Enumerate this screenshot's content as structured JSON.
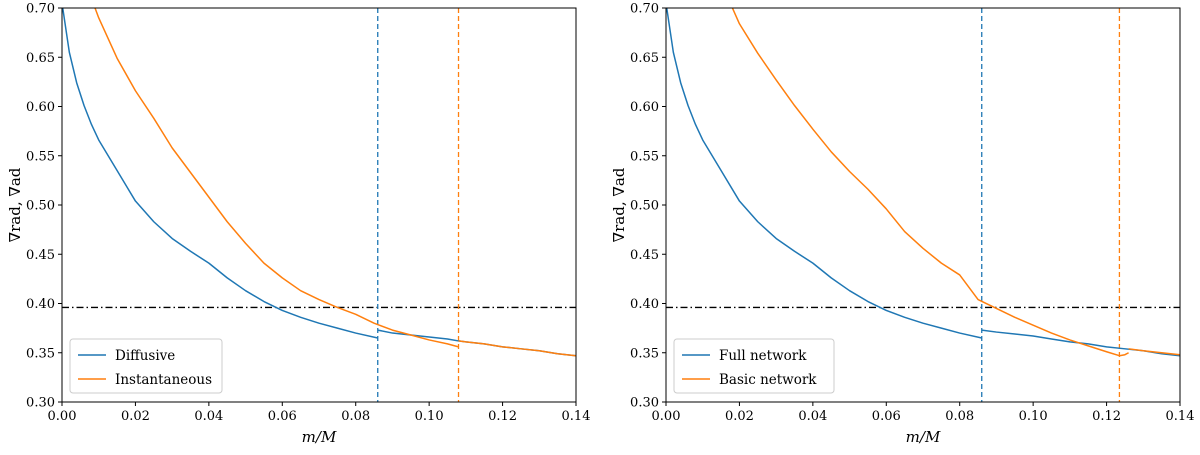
{
  "colors": {
    "blue": "#1f77b4",
    "orange": "#ff7f0e",
    "black": "#000000"
  },
  "chart_data": [
    {
      "type": "line",
      "xlabel": "m/M",
      "ylabel": "∇rad, ∇ad",
      "xlim": [
        0.0,
        0.14
      ],
      "ylim": [
        0.3,
        0.7
      ],
      "xticks": [
        "0.00",
        "0.02",
        "0.04",
        "0.06",
        "0.08",
        "0.10",
        "0.12",
        "0.14"
      ],
      "yticks": [
        "0.30",
        "0.35",
        "0.40",
        "0.45",
        "0.50",
        "0.55",
        "0.60",
        "0.65",
        "0.70"
      ],
      "legend_position": "lower-left",
      "series": [
        {
          "name": "Diffusive",
          "color": "#1f77b4",
          "segments": [
            [
              [
                0.0,
                0.705
              ],
              [
                0.002,
                0.655
              ],
              [
                0.004,
                0.624
              ],
              [
                0.006,
                0.601
              ],
              [
                0.008,
                0.582
              ],
              [
                0.01,
                0.566
              ],
              [
                0.015,
                0.535
              ],
              [
                0.02,
                0.504
              ],
              [
                0.025,
                0.483
              ],
              [
                0.03,
                0.466
              ],
              [
                0.035,
                0.453
              ],
              [
                0.04,
                0.441
              ],
              [
                0.045,
                0.426
              ],
              [
                0.05,
                0.413
              ],
              [
                0.055,
                0.402
              ],
              [
                0.06,
                0.393
              ],
              [
                0.065,
                0.386
              ],
              [
                0.07,
                0.38
              ],
              [
                0.075,
                0.375
              ],
              [
                0.08,
                0.37
              ],
              [
                0.086,
                0.365
              ]
            ],
            [
              [
                0.086,
                0.373
              ],
              [
                0.09,
                0.37
              ],
              [
                0.095,
                0.368
              ],
              [
                0.1,
                0.366
              ],
              [
                0.105,
                0.364
              ],
              [
                0.108,
                0.362
              ],
              [
                0.11,
                0.361
              ],
              [
                0.115,
                0.359
              ],
              [
                0.12,
                0.356
              ],
              [
                0.125,
                0.354
              ],
              [
                0.13,
                0.352
              ],
              [
                0.135,
                0.349
              ],
              [
                0.14,
                0.347
              ]
            ]
          ]
        },
        {
          "name": "Instantaneous",
          "color": "#ff7f0e",
          "segments": [
            [
              [
                0.0085,
                0.705
              ],
              [
                0.01,
                0.69
              ],
              [
                0.015,
                0.649
              ],
              [
                0.02,
                0.616
              ],
              [
                0.025,
                0.588
              ],
              [
                0.03,
                0.558
              ],
              [
                0.035,
                0.533
              ],
              [
                0.04,
                0.508
              ],
              [
                0.045,
                0.483
              ],
              [
                0.05,
                0.461
              ],
              [
                0.055,
                0.441
              ],
              [
                0.06,
                0.426
              ],
              [
                0.065,
                0.413
              ],
              [
                0.07,
                0.404
              ],
              [
                0.075,
                0.396
              ],
              [
                0.08,
                0.389
              ],
              [
                0.085,
                0.38
              ],
              [
                0.09,
                0.373
              ],
              [
                0.095,
                0.368
              ],
              [
                0.1,
                0.363
              ],
              [
                0.105,
                0.359
              ],
              [
                0.108,
                0.356
              ]
            ],
            [
              [
                0.108,
                0.362
              ],
              [
                0.11,
                0.361
              ],
              [
                0.115,
                0.359
              ],
              [
                0.12,
                0.356
              ],
              [
                0.125,
                0.354
              ],
              [
                0.13,
                0.352
              ],
              [
                0.135,
                0.349
              ],
              [
                0.14,
                0.347
              ]
            ]
          ]
        }
      ],
      "hlines": [
        {
          "y": 0.396,
          "color": "#000000",
          "style": "dashdot"
        }
      ],
      "vlines": [
        {
          "x": 0.086,
          "color": "#1f77b4",
          "style": "dashed"
        },
        {
          "x": 0.108,
          "color": "#ff7f0e",
          "style": "dashed"
        }
      ]
    },
    {
      "type": "line",
      "xlabel": "m/M",
      "ylabel": "∇rad, ∇ad",
      "xlim": [
        0.0,
        0.14
      ],
      "ylim": [
        0.3,
        0.7
      ],
      "xticks": [
        "0.00",
        "0.02",
        "0.04",
        "0.06",
        "0.08",
        "0.10",
        "0.12",
        "0.14"
      ],
      "yticks": [
        "0.30",
        "0.35",
        "0.40",
        "0.45",
        "0.50",
        "0.55",
        "0.60",
        "0.65",
        "0.70"
      ],
      "legend_position": "lower-left",
      "series": [
        {
          "name": "Full network",
          "color": "#1f77b4",
          "segments": [
            [
              [
                0.0,
                0.705
              ],
              [
                0.002,
                0.655
              ],
              [
                0.004,
                0.624
              ],
              [
                0.006,
                0.601
              ],
              [
                0.008,
                0.582
              ],
              [
                0.01,
                0.566
              ],
              [
                0.015,
                0.535
              ],
              [
                0.02,
                0.504
              ],
              [
                0.025,
                0.483
              ],
              [
                0.03,
                0.466
              ],
              [
                0.035,
                0.453
              ],
              [
                0.04,
                0.441
              ],
              [
                0.045,
                0.426
              ],
              [
                0.05,
                0.413
              ],
              [
                0.055,
                0.402
              ],
              [
                0.06,
                0.393
              ],
              [
                0.065,
                0.386
              ],
              [
                0.07,
                0.38
              ],
              [
                0.075,
                0.375
              ],
              [
                0.08,
                0.37
              ],
              [
                0.086,
                0.365
              ]
            ],
            [
              [
                0.086,
                0.373
              ],
              [
                0.09,
                0.371
              ],
              [
                0.095,
                0.369
              ],
              [
                0.1,
                0.367
              ],
              [
                0.105,
                0.364
              ],
              [
                0.11,
                0.361
              ],
              [
                0.115,
                0.359
              ],
              [
                0.12,
                0.356
              ],
              [
                0.125,
                0.354
              ],
              [
                0.13,
                0.352
              ],
              [
                0.135,
                0.349
              ],
              [
                0.14,
                0.347
              ]
            ]
          ]
        },
        {
          "name": "Basic network",
          "color": "#ff7f0e",
          "segments": [
            [
              [
                0.0175,
                0.705
              ],
              [
                0.02,
                0.684
              ],
              [
                0.025,
                0.654
              ],
              [
                0.03,
                0.627
              ],
              [
                0.035,
                0.601
              ],
              [
                0.04,
                0.577
              ],
              [
                0.045,
                0.554
              ],
              [
                0.05,
                0.534
              ],
              [
                0.055,
                0.516
              ],
              [
                0.06,
                0.496
              ],
              [
                0.065,
                0.473
              ],
              [
                0.07,
                0.456
              ],
              [
                0.075,
                0.441
              ],
              [
                0.08,
                0.429
              ],
              [
                0.085,
                0.404
              ],
              [
                0.09,
                0.395
              ],
              [
                0.095,
                0.386
              ],
              [
                0.1,
                0.378
              ],
              [
                0.105,
                0.37
              ],
              [
                0.11,
                0.363
              ],
              [
                0.115,
                0.357
              ],
              [
                0.12,
                0.351
              ],
              [
                0.1235,
                0.347
              ],
              [
                0.125,
                0.348
              ],
              [
                0.126,
                0.35
              ]
            ],
            [
              [
                0.126,
                0.354
              ],
              [
                0.13,
                0.352
              ],
              [
                0.135,
                0.35
              ],
              [
                0.14,
                0.348
              ]
            ]
          ]
        }
      ],
      "hlines": [
        {
          "y": 0.396,
          "color": "#000000",
          "style": "dashdot"
        }
      ],
      "vlines": [
        {
          "x": 0.086,
          "color": "#1f77b4",
          "style": "dashed"
        },
        {
          "x": 0.1235,
          "color": "#ff7f0e",
          "style": "dashed"
        }
      ]
    }
  ]
}
